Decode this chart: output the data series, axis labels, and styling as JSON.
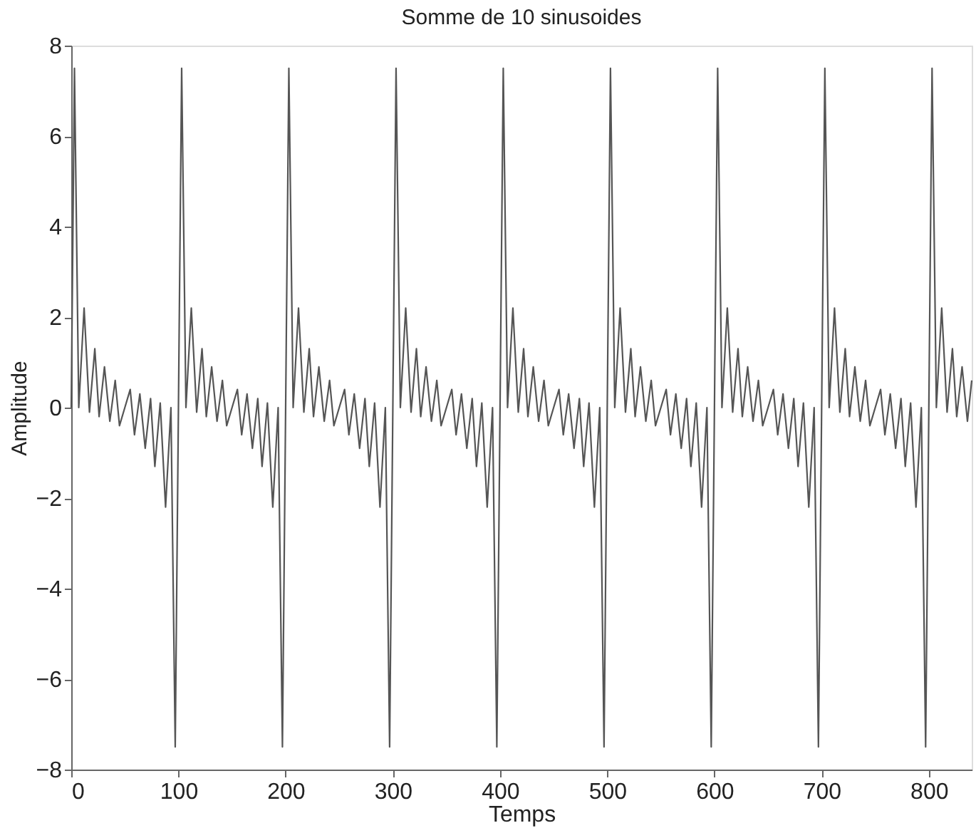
{
  "chart_data": {
    "type": "line",
    "title": "Somme de 10 sinusoides",
    "xlabel": "Temps",
    "ylabel": "Amplitude",
    "xlim": [
      0,
      840
    ],
    "ylim": [
      -8,
      8
    ],
    "xticks": [
      0,
      100,
      200,
      300,
      400,
      500,
      600,
      700,
      800
    ],
    "yticks": [
      -8,
      -6,
      -4,
      -2,
      0,
      2,
      4,
      6,
      8
    ],
    "grid": false,
    "marker": "none",
    "line_style": "solid",
    "series": [
      {
        "color": "#555555",
        "x": [
          0,
          3,
          7,
          12,
          17,
          22,
          26,
          31,
          36,
          41,
          45,
          50,
          55,
          59,
          64,
          69,
          74,
          78,
          83,
          88,
          93,
          97,
          100,
          103,
          107,
          112,
          117,
          122,
          126,
          131,
          136,
          141,
          145,
          150,
          155,
          159,
          164,
          169,
          174,
          178,
          183,
          188,
          193,
          197,
          200,
          203,
          207,
          212,
          217,
          222,
          226,
          231,
          236,
          241,
          245,
          250,
          255,
          259,
          264,
          269,
          274,
          278,
          283,
          288,
          293,
          297,
          300,
          303,
          307,
          312,
          317,
          322,
          326,
          331,
          336,
          341,
          345,
          350,
          355,
          359,
          364,
          369,
          374,
          378,
          383,
          388,
          393,
          397,
          400,
          403,
          407,
          412,
          417,
          422,
          426,
          431,
          436,
          441,
          445,
          450,
          455,
          459,
          464,
          469,
          474,
          478,
          483,
          488,
          493,
          497,
          500,
          503,
          507,
          512,
          517,
          522,
          526,
          531,
          536,
          541,
          545,
          550,
          555,
          559,
          564,
          569,
          574,
          578,
          583,
          588,
          593,
          597,
          600,
          603,
          607,
          612,
          617,
          622,
          626,
          631,
          636,
          641,
          645,
          650,
          655,
          659,
          664,
          669,
          674,
          678,
          683,
          688,
          693,
          697,
          700,
          703,
          707,
          712,
          717,
          722,
          726,
          731,
          736,
          741,
          745,
          750,
          755,
          759,
          764,
          769,
          774,
          778,
          783,
          788,
          793,
          797,
          800,
          803,
          807,
          812,
          817,
          822,
          826,
          831,
          836,
          840
        ],
        "values": [
          0,
          7.5,
          0,
          2.2,
          -0.1,
          1.3,
          -0.2,
          0.9,
          -0.3,
          0.6,
          -0.4,
          0,
          0.4,
          -0.6,
          0.3,
          -0.9,
          0.2,
          -1.3,
          0.1,
          -2.2,
          0,
          -7.5,
          0,
          7.5,
          0,
          2.2,
          -0.1,
          1.3,
          -0.2,
          0.9,
          -0.3,
          0.6,
          -0.4,
          0,
          0.4,
          -0.6,
          0.3,
          -0.9,
          0.2,
          -1.3,
          0.1,
          -2.2,
          0,
          -7.5,
          0,
          7.5,
          0,
          2.2,
          -0.1,
          1.3,
          -0.2,
          0.9,
          -0.3,
          0.6,
          -0.4,
          0,
          0.4,
          -0.6,
          0.3,
          -0.9,
          0.2,
          -1.3,
          0.1,
          -2.2,
          0,
          -7.5,
          0,
          7.5,
          0,
          2.2,
          -0.1,
          1.3,
          -0.2,
          0.9,
          -0.3,
          0.6,
          -0.4,
          0,
          0.4,
          -0.6,
          0.3,
          -0.9,
          0.2,
          -1.3,
          0.1,
          -2.2,
          0,
          -7.5,
          0,
          7.5,
          0,
          2.2,
          -0.1,
          1.3,
          -0.2,
          0.9,
          -0.3,
          0.6,
          -0.4,
          0,
          0.4,
          -0.6,
          0.3,
          -0.9,
          0.2,
          -1.3,
          0.1,
          -2.2,
          0,
          -7.5,
          0,
          7.5,
          0,
          2.2,
          -0.1,
          1.3,
          -0.2,
          0.9,
          -0.3,
          0.6,
          -0.4,
          0,
          0.4,
          -0.6,
          0.3,
          -0.9,
          0.2,
          -1.3,
          0.1,
          -2.2,
          0,
          -7.5,
          0,
          7.5,
          0,
          2.2,
          -0.1,
          1.3,
          -0.2,
          0.9,
          -0.3,
          0.6,
          -0.4,
          0,
          0.4,
          -0.6,
          0.3,
          -0.9,
          0.2,
          -1.3,
          0.1,
          -2.2,
          0,
          -7.5,
          0,
          7.5,
          0,
          2.2,
          -0.1,
          1.3,
          -0.2,
          0.9,
          -0.3,
          0.6,
          -0.4,
          0,
          0.4,
          -0.6,
          0.3,
          -0.9,
          0.2,
          -1.3,
          0.1,
          -2.2,
          0,
          -7.5,
          0,
          7.5,
          0,
          2.2,
          -0.1,
          1.3,
          -0.2,
          0.9,
          -0.3,
          0.6
        ]
      }
    ]
  }
}
